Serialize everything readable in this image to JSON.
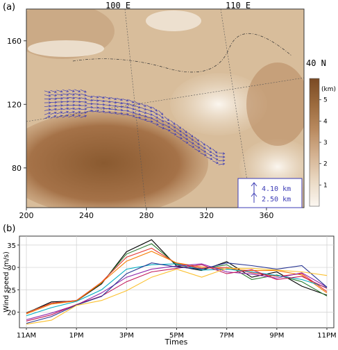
{
  "panel_labels": {
    "a": "(a)",
    "b": "(b)"
  },
  "map": {
    "lon_labels": [
      "100 E",
      "110 E"
    ],
    "lat_label": "40 N",
    "colorbar": {
      "unit": "(km)",
      "ticks": [
        "1",
        "2",
        "3",
        "4",
        "5"
      ]
    },
    "legend": {
      "wind_label": "4.10 km",
      "wind_label_2": "2.50 km"
    },
    "x_ticks": [
      "200",
      "240",
      "280",
      "320",
      "360"
    ],
    "y_ticks": [
      "80",
      "120",
      "160"
    ],
    "colors": {
      "terrain_light": "#f6ede2",
      "terrain_dark": "#7a4a24",
      "vectors": "#3b3bb5",
      "grid": "#555555"
    }
  },
  "chart_data": [
    {
      "type": "image",
      "panel": "a",
      "description_tokens": [
        "100 E",
        "110 E",
        "40 N"
      ],
      "x_range": [
        200,
        385
      ],
      "y_range": [
        55,
        180
      ],
      "colorbar_range": [
        0,
        6
      ]
    },
    {
      "type": "line",
      "panel": "b",
      "xlabel": "Times",
      "ylabel": "Wind speed (m/s)",
      "x_ticks": [
        "11AM",
        "1PM",
        "3PM",
        "5PM",
        "7PM",
        "9PM",
        "11PM"
      ],
      "y_ticks": [
        "20",
        "25",
        "30",
        "35"
      ],
      "ylim": [
        16.5,
        37
      ],
      "grid": true,
      "x": [
        0,
        1,
        2,
        3,
        4,
        5,
        6,
        7,
        8,
        9,
        10,
        11,
        12
      ],
      "series": [
        {
          "color": "#000000",
          "values": [
            19.8,
            22.3,
            22.5,
            26.3,
            33.5,
            36.2,
            30.3,
            29.3,
            31.3,
            27.8,
            29.0,
            25.8,
            23.8
          ]
        },
        {
          "color": "#2e7d32",
          "values": [
            19.9,
            22.0,
            22.6,
            26.5,
            33.0,
            35.3,
            30.6,
            29.6,
            30.6,
            27.3,
            28.3,
            26.8,
            23.6
          ]
        },
        {
          "color": "#e53935",
          "values": [
            19.8,
            22.0,
            22.6,
            26.7,
            32.3,
            34.3,
            30.9,
            29.8,
            30.0,
            28.8,
            28.0,
            28.6,
            24.6
          ]
        },
        {
          "color": "#f57c00",
          "values": [
            19.6,
            21.8,
            22.5,
            26.6,
            31.4,
            33.6,
            31.0,
            30.1,
            29.6,
            29.3,
            29.3,
            28.3,
            24.3
          ]
        },
        {
          "color": "#00acc1",
          "values": [
            19.2,
            21.0,
            22.4,
            25.0,
            29.6,
            30.6,
            30.8,
            29.4,
            29.6,
            29.0,
            28.2,
            27.3,
            25.5
          ]
        },
        {
          "color": "#8e24aa",
          "values": [
            18.3,
            19.8,
            21.6,
            24.3,
            27.8,
            29.6,
            30.3,
            30.8,
            29.0,
            28.5,
            27.6,
            28.8,
            25.6
          ]
        },
        {
          "color": "#c2185b",
          "values": [
            18.0,
            19.4,
            21.7,
            23.6,
            26.8,
            29.0,
            29.8,
            30.6,
            28.6,
            29.5,
            27.3,
            28.0,
            25.3
          ]
        },
        {
          "color": "#283593",
          "values": [
            17.5,
            19.0,
            21.6,
            23.5,
            28.6,
            31.0,
            30.1,
            29.6,
            31.0,
            30.4,
            29.6,
            30.4,
            25.6
          ]
        },
        {
          "color": "#fbc02d",
          "values": [
            17.3,
            18.2,
            21.5,
            22.6,
            24.8,
            27.8,
            29.6,
            27.8,
            29.8,
            29.8,
            29.4,
            29.0,
            28.2
          ]
        }
      ]
    }
  ]
}
